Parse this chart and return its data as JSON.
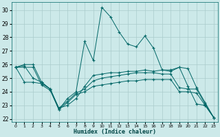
{
  "title": "",
  "xlabel": "Humidex (Indice chaleur)",
  "bg_color": "#cce9e9",
  "grid_color": "#aacccc",
  "line_color": "#006666",
  "xlim": [
    -0.5,
    23.5
  ],
  "ylim": [
    21.8,
    30.6
  ],
  "yticks": [
    22,
    23,
    24,
    25,
    26,
    27,
    28,
    29,
    30
  ],
  "xticks": [
    0,
    1,
    2,
    3,
    4,
    5,
    6,
    7,
    8,
    9,
    10,
    11,
    12,
    13,
    14,
    15,
    16,
    17,
    18,
    19,
    20,
    21,
    22,
    23
  ],
  "lines": [
    {
      "x": [
        0,
        1,
        2,
        3,
        4,
        5,
        6,
        7,
        8,
        9,
        10,
        11,
        12,
        13,
        14,
        15,
        16,
        17,
        18,
        19,
        20,
        21,
        22,
        23
      ],
      "y": [
        25.8,
        26.0,
        26.0,
        24.7,
        24.2,
        22.7,
        23.5,
        24.0,
        27.7,
        26.3,
        30.2,
        29.5,
        28.4,
        27.5,
        27.3,
        28.1,
        27.2,
        25.6,
        25.5,
        25.8,
        24.4,
        23.1,
        23.0,
        22.1
      ]
    },
    {
      "x": [
        0,
        1,
        2,
        3,
        4,
        5,
        6,
        7,
        8,
        9,
        10,
        11,
        12,
        13,
        14,
        15,
        16,
        17,
        18,
        19,
        20,
        21,
        22,
        23
      ],
      "y": [
        25.8,
        25.9,
        25.0,
        24.7,
        24.2,
        22.8,
        23.0,
        23.5,
        24.4,
        25.2,
        25.3,
        25.4,
        25.4,
        25.5,
        25.5,
        25.6,
        25.5,
        25.6,
        25.6,
        25.8,
        25.7,
        24.3,
        23.2,
        22.1
      ]
    },
    {
      "x": [
        0,
        1,
        2,
        3,
        4,
        5,
        6,
        7,
        8,
        9,
        10,
        11,
        12,
        13,
        14,
        15,
        16,
        17,
        18,
        19,
        20,
        21,
        22,
        23
      ],
      "y": [
        25.8,
        24.7,
        24.7,
        24.6,
        24.2,
        22.8,
        23.3,
        23.9,
        24.2,
        24.8,
        25.0,
        25.1,
        25.2,
        25.3,
        25.4,
        25.4,
        25.4,
        25.3,
        25.3,
        24.3,
        24.2,
        24.2,
        23.1,
        22.1
      ]
    },
    {
      "x": [
        0,
        1,
        2,
        3,
        4,
        5,
        6,
        7,
        8,
        9,
        10,
        11,
        12,
        13,
        14,
        15,
        16,
        17,
        18,
        19,
        20,
        21,
        22,
        23
      ],
      "y": [
        25.8,
        25.8,
        25.8,
        24.5,
        24.1,
        22.7,
        23.2,
        23.8,
        24.0,
        24.4,
        24.5,
        24.6,
        24.7,
        24.8,
        24.8,
        24.9,
        24.9,
        24.9,
        24.9,
        24.0,
        24.0,
        23.9,
        23.0,
        22.1
      ]
    }
  ]
}
